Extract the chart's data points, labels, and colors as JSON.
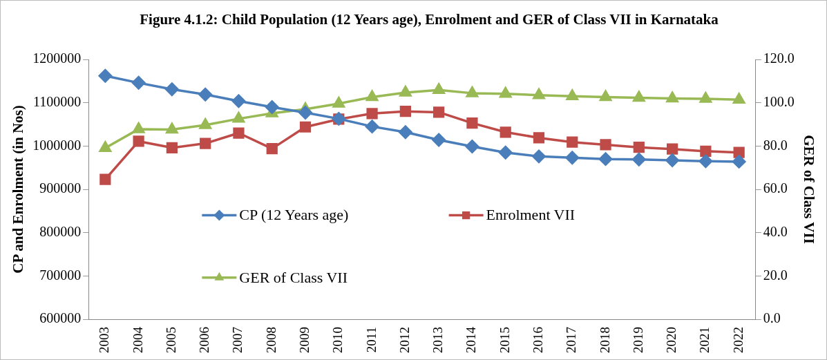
{
  "chart_data": {
    "type": "line",
    "title": "Figure 4.1.2: Child Population (12 Years age), Enrolment and GER of Class VII in Karnataka",
    "ylabel": "CP and Enrolment (in Nos)",
    "y2label": "GER of Class VII",
    "categories": [
      "2003",
      "2004",
      "2005",
      "2006",
      "2007",
      "2008",
      "2009",
      "2010",
      "2011",
      "2012",
      "2013",
      "2014",
      "2015",
      "2016",
      "2017",
      "2018",
      "2019",
      "2020",
      "2021",
      "2022"
    ],
    "series": [
      {
        "name": "CP (12 Years age)",
        "color": "#4a7ebb",
        "marker": "diamond",
        "values": [
          1162000,
          1146000,
          1131000,
          1119000,
          1104000,
          1090000,
          1077000,
          1063000,
          1045000,
          1032000,
          1014000,
          999000,
          985000,
          976000,
          973000,
          970000,
          969000,
          967000,
          965000,
          964000
        ]
      },
      {
        "name": "Enrolment VII",
        "color": "#be4b48",
        "marker": "square",
        "values": [
          923000,
          1011000,
          996000,
          1006000,
          1030000,
          994000,
          1044000,
          1062000,
          1075000,
          1080000,
          1078000,
          1053000,
          1032000,
          1019000,
          1009000,
          1003000,
          997000,
          993000,
          988000,
          985000
        ]
      },
      {
        "name": "GER of Class VII",
        "color": "#98b954",
        "marker": "triangle",
        "axis": "y2",
        "values": [
          79.1,
          87.8,
          87.6,
          89.7,
          92.6,
          95.1,
          97.0,
          99.6,
          102.6,
          104.7,
          105.9,
          104.4,
          104.1,
          103.5,
          103.0,
          102.6,
          102.3,
          102.0,
          101.8,
          101.4
        ]
      }
    ],
    "ylim": [
      600000,
      1200000
    ],
    "yticks": [
      600000,
      700000,
      800000,
      900000,
      1000000,
      1100000,
      1200000
    ],
    "y2lim": [
      0,
      120
    ],
    "y2ticks": [
      {
        "value": 0,
        "label": "0.0"
      },
      {
        "value": 20,
        "label": "20.0"
      },
      {
        "value": 40,
        "label": "40.0"
      },
      {
        "value": 60,
        "label": "60.0"
      },
      {
        "value": 80,
        "label": "80.0"
      },
      {
        "value": 100,
        "label": "100.0"
      },
      {
        "value": 120,
        "label": "120.0"
      }
    ],
    "grid": false,
    "legend": "bottom",
    "line_style": "solid"
  }
}
